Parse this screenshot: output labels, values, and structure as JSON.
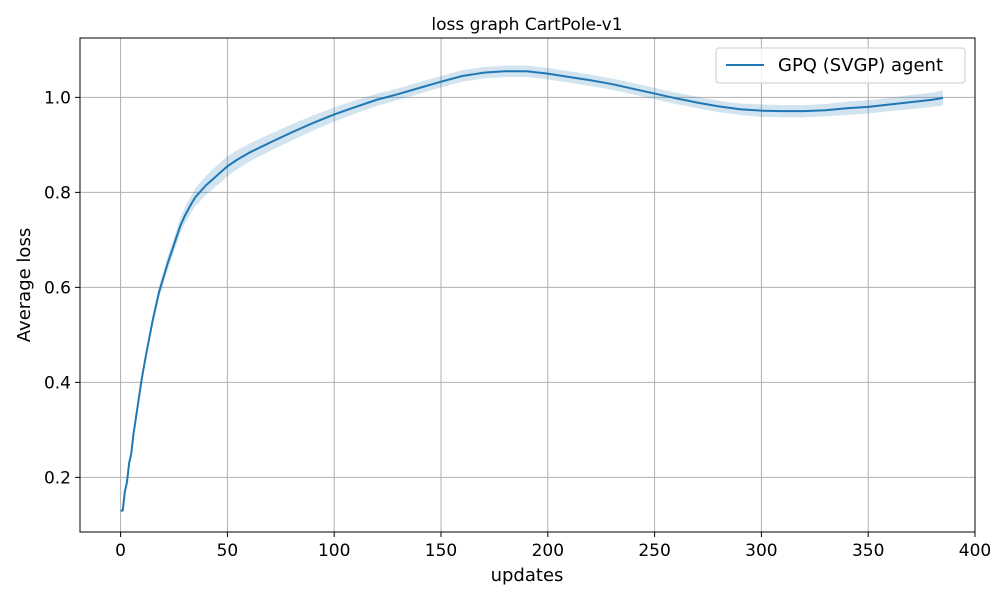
{
  "chart_data": {
    "type": "line",
    "title": "loss graph CartPole-v1",
    "xlabel": "updates",
    "ylabel": "Average loss",
    "xlim": [
      -19,
      400
    ],
    "ylim": [
      0.085,
      1.125
    ],
    "xticks": [
      0,
      50,
      100,
      150,
      200,
      250,
      300,
      350,
      400
    ],
    "yticks": [
      0.2,
      0.4,
      0.6,
      0.8,
      1.0
    ],
    "xtick_labels": [
      "0",
      "50",
      "100",
      "150",
      "200",
      "250",
      "300",
      "350",
      "400"
    ],
    "ytick_labels": [
      "0.2",
      "0.4",
      "0.6",
      "0.8",
      "1.0"
    ],
    "grid": true,
    "legend": {
      "position": "top-right"
    },
    "series": [
      {
        "name": "GPQ (SVGP) agent",
        "color": "#1f77b4",
        "band_color": "#1f77b4",
        "x": [
          0,
          1,
          2,
          3,
          4,
          5,
          6,
          8,
          10,
          12,
          15,
          18,
          20,
          22,
          25,
          28,
          30,
          33,
          35,
          38,
          40,
          45,
          50,
          55,
          60,
          70,
          80,
          90,
          100,
          110,
          120,
          130,
          140,
          150,
          160,
          170,
          180,
          190,
          200,
          210,
          220,
          230,
          240,
          250,
          260,
          270,
          280,
          290,
          300,
          310,
          320,
          330,
          340,
          350,
          360,
          370,
          380,
          385
        ],
        "y": [
          0.13,
          0.13,
          0.17,
          0.19,
          0.23,
          0.25,
          0.29,
          0.35,
          0.41,
          0.46,
          0.53,
          0.59,
          0.62,
          0.65,
          0.69,
          0.73,
          0.75,
          0.775,
          0.79,
          0.805,
          0.815,
          0.835,
          0.855,
          0.87,
          0.883,
          0.905,
          0.926,
          0.946,
          0.964,
          0.98,
          0.995,
          1.007,
          1.02,
          1.033,
          1.045,
          1.052,
          1.055,
          1.055,
          1.05,
          1.043,
          1.036,
          1.028,
          1.018,
          1.008,
          0.998,
          0.989,
          0.981,
          0.975,
          0.972,
          0.971,
          0.971,
          0.973,
          0.977,
          0.98,
          0.985,
          0.99,
          0.995,
          0.999
        ],
        "band": [
          0.0,
          0.0,
          0.003,
          0.004,
          0.005,
          0.006,
          0.007,
          0.008,
          0.009,
          0.01,
          0.011,
          0.012,
          0.013,
          0.014,
          0.015,
          0.016,
          0.017,
          0.018,
          0.019,
          0.02,
          0.02,
          0.021,
          0.021,
          0.02,
          0.019,
          0.018,
          0.017,
          0.016,
          0.015,
          0.014,
          0.013,
          0.012,
          0.012,
          0.012,
          0.012,
          0.012,
          0.012,
          0.012,
          0.012,
          0.012,
          0.012,
          0.012,
          0.012,
          0.012,
          0.012,
          0.012,
          0.012,
          0.012,
          0.013,
          0.013,
          0.013,
          0.013,
          0.014,
          0.014,
          0.014,
          0.015,
          0.015,
          0.016
        ]
      }
    ]
  }
}
